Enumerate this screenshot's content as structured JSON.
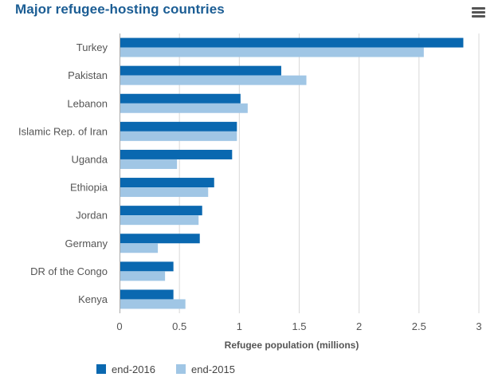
{
  "header": {
    "title": "Major refugee-hosting countries",
    "menu_icon": "hamburger-menu-icon"
  },
  "chart_data": {
    "type": "bar",
    "orientation": "horizontal",
    "title": "Major refugee-hosting countries",
    "xlabel": "Refugee population (millions)",
    "ylabel": "",
    "xlim": [
      0,
      3
    ],
    "xticks": [
      "0",
      "0.5",
      "1",
      "1.5",
      "2",
      "2.5",
      "3"
    ],
    "grid": true,
    "legend_position": "bottom-left",
    "categories": [
      "Turkey",
      "Pakistan",
      "Lebanon",
      "Islamic Rep. of Iran",
      "Uganda",
      "Ethiopia",
      "Jordan",
      "Germany",
      "DR of the Congo",
      "Kenya"
    ],
    "series": [
      {
        "name": "end-2016",
        "color": "#0a68b0",
        "values": [
          2.87,
          1.35,
          1.01,
          0.98,
          0.94,
          0.79,
          0.69,
          0.67,
          0.45,
          0.45
        ]
      },
      {
        "name": "end-2015",
        "color": "#a0c6e5",
        "values": [
          2.54,
          1.56,
          1.07,
          0.98,
          0.48,
          0.74,
          0.66,
          0.32,
          0.38,
          0.55
        ]
      }
    ]
  }
}
